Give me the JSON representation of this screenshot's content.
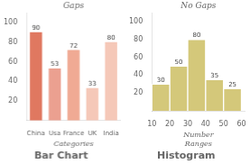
{
  "chart_data": [
    {
      "type": "bar",
      "title": "Bar Chart",
      "categories": [
        "China",
        "Usa",
        "France",
        "UK",
        "India"
      ],
      "values": [
        90,
        53,
        72,
        33,
        80
      ],
      "colors": [
        "#e07860",
        "#eba090",
        "#f0aa94",
        "#f5c8b8",
        "#f5c8b8"
      ],
      "ylim": [
        0,
        110
      ],
      "yticks": [
        20,
        40,
        60,
        80,
        100
      ],
      "xlabel": "Categories",
      "annotations": [
        "Gaps"
      ],
      "grid": false,
      "data_labels": true
    },
    {
      "type": "histogram",
      "title": "Histogram",
      "bins": [
        10,
        20,
        30,
        40,
        50,
        60
      ],
      "values": [
        30,
        50,
        80,
        35,
        25
      ],
      "color": "#d4c87a",
      "xlim": [
        10,
        62
      ],
      "xticks": [
        10,
        20,
        30,
        40,
        50,
        60
      ],
      "ylim": [
        0,
        110
      ],
      "yticks": [
        20,
        40,
        60,
        80,
        100
      ],
      "xlabel": "Number\nRanges",
      "annotations": [
        "No Gaps"
      ],
      "grid": false,
      "data_labels": true
    }
  ]
}
